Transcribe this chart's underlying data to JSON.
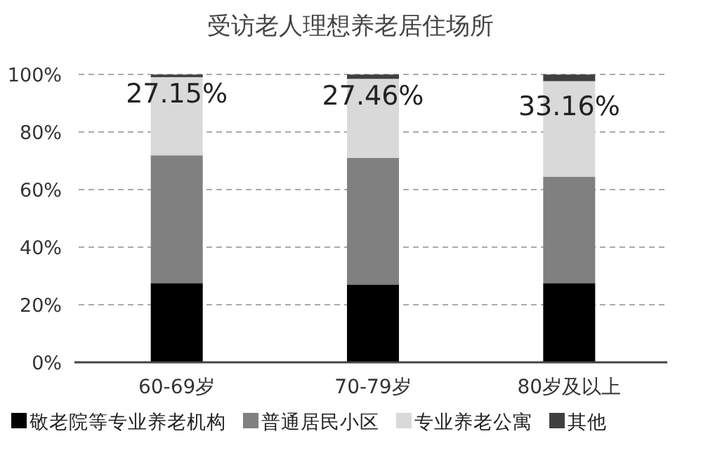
{
  "chart_data": {
    "type": "bar",
    "stacked": true,
    "title": "受访老人理想养老居住场所",
    "categories": [
      "60-69岁",
      "70-79岁",
      "80岁及以上"
    ],
    "series": [
      {
        "name": "敬老院等专业养老机构",
        "color": "#000000",
        "values": [
          27.5,
          27,
          27.5
        ]
      },
      {
        "name": "普通居民小区",
        "color": "#808080",
        "values": [
          44.4,
          44,
          37
        ]
      },
      {
        "name": "专业养老公寓",
        "color": "#d9d9d9",
        "values": [
          27.15,
          27.46,
          33.16
        ],
        "value_labels": [
          "27.15%",
          "27.46%",
          "33.16%"
        ]
      },
      {
        "name": "其他",
        "color": "#404040",
        "values": [
          0.9,
          1.5,
          2.3
        ]
      }
    ],
    "ylim": [
      0,
      100
    ],
    "yticks": [
      {
        "value": 0,
        "label": "0%"
      },
      {
        "value": 20,
        "label": "20%"
      },
      {
        "value": 40,
        "label": "40%"
      },
      {
        "value": 60,
        "label": "60%"
      },
      {
        "value": 80,
        "label": "80%"
      },
      {
        "value": 100,
        "label": "100%"
      }
    ],
    "grid": "y",
    "legend": "bottom"
  }
}
